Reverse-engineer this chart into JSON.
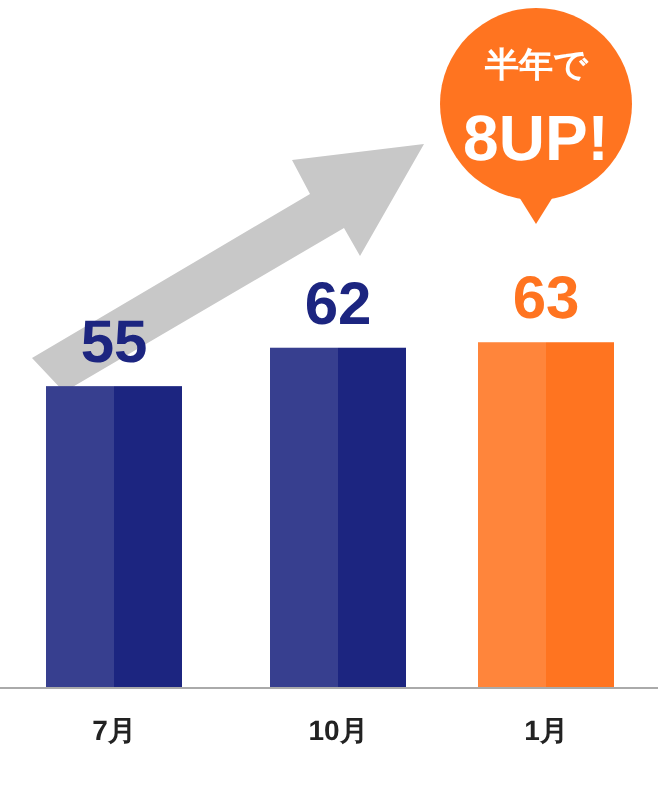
{
  "chart_data": {
    "type": "bar",
    "categories": [
      "7月",
      "10月",
      "1月"
    ],
    "values": [
      55,
      62,
      63
    ],
    "colors": [
      "#1c2580",
      "#1c2580",
      "#ff7420"
    ],
    "data_labels": true,
    "annotations": [
      "半年で",
      "8UP!"
    ]
  }
}
